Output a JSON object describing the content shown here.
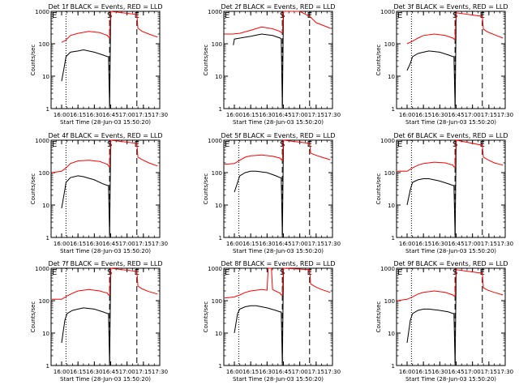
{
  "figure": {
    "ylabel": "Counts/sec",
    "x_ticks": [
      "16:00",
      "16:15",
      "16:30",
      "16:45",
      "17:00",
      "17:15",
      "17:30"
    ],
    "y_ticks": [
      "1",
      "10",
      "100",
      "1000"
    ],
    "xlabel": "Start Time (28-Jun-03 15:50:20)",
    "markers": [
      "E",
      "S",
      "E"
    ],
    "colors": {
      "events": "#000000",
      "lld": "#ff0000"
    }
  },
  "chart_data": [
    {
      "type": "line",
      "title": "Det 1f BLACK = Events, RED = LLD",
      "xlabel": "Start Time (28-Jun-03 15:50:20)",
      "ylabel": "Counts/sec",
      "xlim": [
        "15:50:20",
        "17:30"
      ],
      "ylim": [
        1,
        1000
      ],
      "yscale": "log",
      "vlines": [
        {
          "time": "16:04",
          "style": "dotted"
        },
        {
          "time": "16:44",
          "style": "dashed",
          "label": "S"
        },
        {
          "time": "17:09",
          "style": "dashed",
          "label": "E"
        }
      ],
      "series": [
        {
          "name": "Events",
          "color": "#000000",
          "x": [
            "16:00",
            "16:03",
            "16:04",
            "16:08",
            "16:15",
            "16:20",
            "16:30",
            "16:38",
            "16:42",
            "16:43",
            "16:44",
            "16:45"
          ],
          "y": [
            7,
            25,
            40,
            55,
            60,
            65,
            55,
            45,
            40,
            40,
            1,
            800
          ]
        },
        {
          "name": "LLD",
          "color": "#ff0000",
          "x": [
            "16:00",
            "16:04",
            "16:08",
            "16:15",
            "16:25",
            "16:35",
            "16:42",
            "16:43",
            "16:44",
            "16:45",
            "17:09",
            "17:10",
            "17:14",
            "17:20",
            "17:28"
          ],
          "y": [
            110,
            130,
            180,
            210,
            240,
            220,
            180,
            160,
            150,
            1000,
            800,
            300,
            240,
            200,
            160
          ]
        }
      ]
    },
    {
      "type": "line",
      "title": "Det 2f BLACK = Events, RED = LLD",
      "xlabel": "Start Time (28-Jun-03 15:50:20)",
      "ylabel": "Counts/sec",
      "xlim": [
        "15:50:20",
        "17:30"
      ],
      "ylim": [
        1,
        1000
      ],
      "yscale": "log",
      "vlines": [
        {
          "time": "16:44",
          "style": "dashed",
          "label": "S"
        },
        {
          "time": "17:09",
          "style": "dashed",
          "label": "E"
        }
      ],
      "series": [
        {
          "name": "Events",
          "color": "#000000",
          "x": [
            "15:59",
            "16:00",
            "16:05",
            "16:15",
            "16:25",
            "16:35",
            "16:42",
            "16:43",
            "16:44",
            "16:45"
          ],
          "y": [
            90,
            140,
            150,
            170,
            200,
            180,
            150,
            140,
            1,
            900
          ]
        },
        {
          "name": "LLD",
          "color": "#ff0000",
          "x": [
            "15:51",
            "15:58",
            "16:05",
            "16:15",
            "16:25",
            "16:35",
            "16:42",
            "16:43",
            "16:44",
            "16:45",
            "17:00",
            "17:09",
            "17:15",
            "17:28"
          ],
          "y": [
            200,
            200,
            210,
            260,
            330,
            290,
            240,
            220,
            220,
            1000,
            1000,
            700,
            450,
            300
          ]
        }
      ]
    },
    {
      "type": "line",
      "title": "Det 3f BLACK = Events, RED = LLD",
      "xlabel": "Start Time (28-Jun-03 15:50:20)",
      "ylabel": "Counts/sec",
      "xlim": [
        "15:50:20",
        "17:30"
      ],
      "ylim": [
        1,
        1000
      ],
      "yscale": "log",
      "vlines": [
        {
          "time": "16:04",
          "style": "dotted"
        },
        {
          "time": "16:44",
          "style": "dashed",
          "label": "S"
        },
        {
          "time": "17:09",
          "style": "dashed",
          "label": "E"
        }
      ],
      "series": [
        {
          "name": "Events",
          "color": "#000000",
          "x": [
            "16:00",
            "16:03",
            "16:05",
            "16:10",
            "16:15",
            "16:20",
            "16:30",
            "16:38",
            "16:42",
            "16:43",
            "16:44",
            "16:45"
          ],
          "y": [
            15,
            25,
            40,
            50,
            55,
            60,
            55,
            45,
            40,
            40,
            1,
            700
          ]
        },
        {
          "name": "LLD",
          "color": "#ff0000",
          "x": [
            "16:00",
            "16:05",
            "16:10",
            "16:15",
            "16:25",
            "16:35",
            "16:42",
            "16:43",
            "16:44",
            "16:45",
            "17:09",
            "17:10",
            "17:14",
            "17:20",
            "17:28"
          ],
          "y": [
            100,
            120,
            150,
            180,
            200,
            180,
            150,
            140,
            140,
            900,
            700,
            280,
            230,
            190,
            150
          ]
        }
      ]
    },
    {
      "type": "line",
      "title": "Det 4f BLACK = Events, RED = LLD",
      "xlabel": "Start Time (28-Jun-03 15:50:20)",
      "ylabel": "Counts/sec",
      "xlim": [
        "15:50:20",
        "17:30"
      ],
      "ylim": [
        1,
        1000
      ],
      "yscale": "log",
      "vlines": [
        {
          "time": "16:04",
          "style": "dotted"
        },
        {
          "time": "16:44",
          "style": "dashed",
          "label": "S"
        },
        {
          "time": "17:09",
          "style": "dashed",
          "label": "E"
        }
      ],
      "series": [
        {
          "name": "Events",
          "color": "#000000",
          "x": [
            "16:00",
            "16:03",
            "16:04",
            "16:08",
            "16:15",
            "16:20",
            "16:30",
            "16:38",
            "16:42",
            "16:43",
            "16:44",
            "16:45"
          ],
          "y": [
            8,
            30,
            50,
            70,
            80,
            75,
            60,
            45,
            40,
            40,
            1,
            800
          ]
        },
        {
          "name": "LLD",
          "color": "#ff0000",
          "x": [
            "15:51",
            "16:00",
            "16:04",
            "16:08",
            "16:15",
            "16:25",
            "16:35",
            "16:42",
            "16:43",
            "16:44",
            "16:45",
            "17:09",
            "17:10",
            "17:14",
            "17:20",
            "17:28"
          ],
          "y": [
            100,
            110,
            140,
            190,
            230,
            240,
            220,
            180,
            160,
            150,
            1000,
            800,
            300,
            250,
            200,
            160
          ]
        }
      ]
    },
    {
      "type": "line",
      "title": "Det 5f BLACK = Events, RED = LLD",
      "xlabel": "Start Time (28-Jun-03 15:50:20)",
      "ylabel": "Counts/sec",
      "xlim": [
        "15:50:20",
        "17:30"
      ],
      "ylim": [
        1,
        1000
      ],
      "yscale": "log",
      "vlines": [
        {
          "time": "16:04",
          "style": "dotted"
        },
        {
          "time": "16:44",
          "style": "dashed",
          "label": "S"
        },
        {
          "time": "17:09",
          "style": "dashed",
          "label": "E"
        }
      ],
      "series": [
        {
          "name": "Events",
          "color": "#000000",
          "x": [
            "16:00",
            "16:03",
            "16:05",
            "16:10",
            "16:15",
            "16:20",
            "16:30",
            "16:38",
            "16:42",
            "16:43",
            "16:44",
            "16:45"
          ],
          "y": [
            25,
            50,
            80,
            100,
            110,
            110,
            100,
            80,
            70,
            70,
            1,
            800
          ]
        },
        {
          "name": "LLD",
          "color": "#ff0000",
          "x": [
            "15:51",
            "16:00",
            "16:05",
            "16:10",
            "16:15",
            "16:25",
            "16:35",
            "16:42",
            "16:43",
            "16:44",
            "16:45",
            "17:09",
            "17:10",
            "17:14",
            "17:20",
            "17:28"
          ],
          "y": [
            180,
            190,
            240,
            300,
            330,
            350,
            320,
            280,
            250,
            240,
            1000,
            800,
            400,
            350,
            300,
            250
          ]
        }
      ]
    },
    {
      "type": "line",
      "title": "Det 6f BLACK = Events, RED = LLD",
      "xlabel": "Start Time (28-Jun-03 15:50:20)",
      "ylabel": "Counts/sec",
      "xlim": [
        "15:50:20",
        "17:30"
      ],
      "ylim": [
        1,
        1000
      ],
      "yscale": "log",
      "vlines": [
        {
          "time": "16:04",
          "style": "dotted"
        },
        {
          "time": "16:44",
          "style": "dashed",
          "label": "S"
        },
        {
          "time": "17:09",
          "style": "dashed",
          "label": "E"
        }
      ],
      "series": [
        {
          "name": "Events",
          "color": "#000000",
          "x": [
            "16:00",
            "16:03",
            "16:05",
            "16:10",
            "16:15",
            "16:20",
            "16:30",
            "16:38",
            "16:42",
            "16:43",
            "16:44",
            "16:45"
          ],
          "y": [
            10,
            30,
            50,
            60,
            65,
            65,
            55,
            45,
            40,
            40,
            1,
            800
          ]
        },
        {
          "name": "LLD",
          "color": "#ff0000",
          "x": [
            "15:51",
            "16:00",
            "16:05",
            "16:10",
            "16:15",
            "16:25",
            "16:35",
            "16:42",
            "16:43",
            "16:44",
            "16:45",
            "17:09",
            "17:10",
            "17:14",
            "17:20",
            "17:28"
          ],
          "y": [
            110,
            110,
            140,
            170,
            190,
            210,
            200,
            170,
            150,
            150,
            1000,
            700,
            300,
            250,
            200,
            170
          ]
        }
      ]
    },
    {
      "type": "line",
      "title": "Det 7f BLACK = Events, RED = LLD",
      "xlabel": "Start Time (28-Jun-03 15:50:20)",
      "ylabel": "Counts/sec",
      "xlim": [
        "15:50:20",
        "17:30"
      ],
      "ylim": [
        1,
        1000
      ],
      "yscale": "log",
      "vlines": [
        {
          "time": "16:04",
          "style": "dotted"
        },
        {
          "time": "16:44",
          "style": "dashed",
          "label": "S"
        },
        {
          "time": "17:09",
          "style": "dashed",
          "label": "E"
        }
      ],
      "series": [
        {
          "name": "Events",
          "color": "#000000",
          "x": [
            "16:00",
            "16:03",
            "16:05",
            "16:10",
            "16:15",
            "16:20",
            "16:30",
            "16:38",
            "16:42",
            "16:43",
            "16:44",
            "16:45"
          ],
          "y": [
            5,
            25,
            40,
            50,
            55,
            60,
            55,
            45,
            40,
            40,
            1,
            800
          ]
        },
        {
          "name": "LLD",
          "color": "#ff0000",
          "x": [
            "15:51",
            "16:00",
            "16:05",
            "16:10",
            "16:15",
            "16:25",
            "16:35",
            "16:42",
            "16:43",
            "16:44",
            "16:45",
            "17:09",
            "17:10",
            "17:14",
            "17:20",
            "17:28"
          ],
          "y": [
            110,
            110,
            140,
            170,
            200,
            220,
            200,
            170,
            150,
            150,
            1000,
            800,
            280,
            230,
            190,
            160
          ]
        }
      ]
    },
    {
      "type": "line",
      "title": "Det 8f BLACK = Events, RED = LLD",
      "xlabel": "Start Time (28-Jun-03 15:50:20)",
      "ylabel": "Counts/sec",
      "xlim": [
        "15:50:20",
        "17:30"
      ],
      "ylim": [
        1,
        1000
      ],
      "yscale": "log",
      "vlines": [
        {
          "time": "16:04",
          "style": "dotted"
        },
        {
          "time": "16:44",
          "style": "dashed",
          "label": "S"
        },
        {
          "time": "17:09",
          "style": "dashed",
          "label": "E"
        }
      ],
      "series": [
        {
          "name": "Events",
          "color": "#000000",
          "x": [
            "16:00",
            "16:03",
            "16:05",
            "16:10",
            "16:15",
            "16:20",
            "16:30",
            "16:38",
            "16:42",
            "16:43",
            "16:44",
            "16:45"
          ],
          "y": [
            10,
            40,
            55,
            65,
            70,
            70,
            60,
            50,
            45,
            45,
            1,
            800
          ]
        },
        {
          "name": "LLD",
          "color": "#ff0000",
          "x": [
            "15:51",
            "16:00",
            "16:05",
            "16:10",
            "16:15",
            "16:25",
            "16:30",
            "16:31",
            "16:34",
            "16:35",
            "16:42",
            "16:43",
            "16:44",
            "16:45",
            "17:09",
            "17:10",
            "17:14",
            "17:20",
            "17:28"
          ],
          "y": [
            120,
            130,
            150,
            180,
            200,
            220,
            210,
            1000,
            1000,
            220,
            170,
            150,
            150,
            1000,
            900,
            330,
            270,
            220,
            180
          ]
        }
      ]
    },
    {
      "type": "line",
      "title": "Det 9f BLACK = Events, RED = LLD",
      "xlabel": "Start Time (28-Jun-03 15:50:20)",
      "ylabel": "Counts/sec",
      "xlim": [
        "15:50:20",
        "17:30"
      ],
      "ylim": [
        1,
        1000
      ],
      "yscale": "log",
      "vlines": [
        {
          "time": "16:04",
          "style": "dotted"
        },
        {
          "time": "16:44",
          "style": "dashed",
          "label": "S"
        },
        {
          "time": "17:09",
          "style": "dashed",
          "label": "E"
        }
      ],
      "series": [
        {
          "name": "Events",
          "color": "#000000",
          "x": [
            "16:00",
            "16:03",
            "16:05",
            "16:10",
            "16:15",
            "16:20",
            "16:30",
            "16:38",
            "16:42",
            "16:43",
            "16:44",
            "16:45"
          ],
          "y": [
            5,
            25,
            40,
            50,
            55,
            55,
            50,
            45,
            40,
            40,
            1,
            700
          ]
        },
        {
          "name": "LLD",
          "color": "#ff0000",
          "x": [
            "15:51",
            "16:00",
            "16:05",
            "16:10",
            "16:15",
            "16:25",
            "16:35",
            "16:42",
            "16:43",
            "16:44",
            "16:45",
            "17:09",
            "17:10",
            "17:14",
            "17:20",
            "17:28"
          ],
          "y": [
            100,
            110,
            130,
            160,
            180,
            200,
            180,
            150,
            140,
            140,
            900,
            700,
            250,
            210,
            180,
            150
          ]
        }
      ]
    }
  ]
}
